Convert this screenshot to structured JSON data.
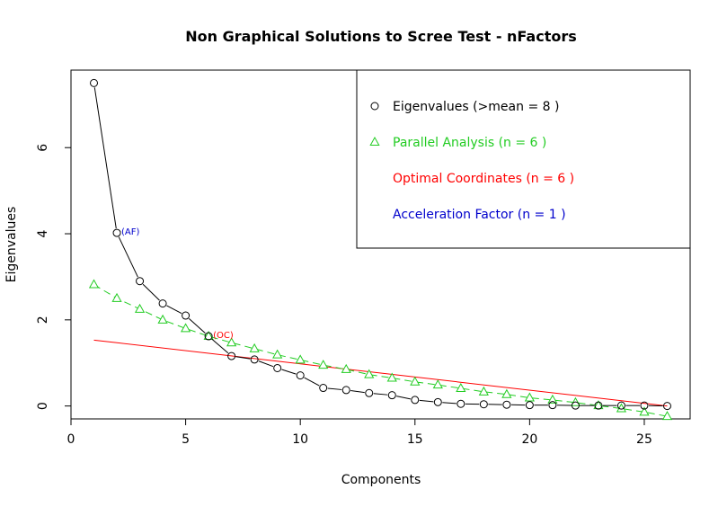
{
  "chart_data": {
    "type": "scatter",
    "title": "Non Graphical Solutions to Scree Test - nFactors",
    "xlabel": "Components",
    "ylabel": "Eigenvalues",
    "xlim": [
      0,
      27
    ],
    "ylim": [
      -0.3,
      7.8
    ],
    "x_ticks": [
      0,
      5,
      10,
      15,
      20,
      25
    ],
    "y_ticks": [
      0,
      2,
      4,
      6
    ],
    "grid": false,
    "legend_position": "top-right",
    "series": [
      {
        "name": "Eigenvalues (>mean  =  8 )",
        "marker": "circle",
        "line": "solid",
        "color": "#000000",
        "x": [
          1,
          2,
          3,
          4,
          5,
          6,
          7,
          8,
          9,
          10,
          11,
          12,
          13,
          14,
          15,
          16,
          17,
          18,
          19,
          20,
          21,
          22,
          23,
          24,
          25,
          26
        ],
        "values": [
          7.5,
          4.02,
          2.9,
          2.38,
          2.1,
          1.62,
          1.16,
          1.08,
          0.88,
          0.71,
          0.42,
          0.37,
          0.3,
          0.25,
          0.14,
          0.09,
          0.05,
          0.04,
          0.03,
          0.02,
          0.02,
          0.01,
          0.01,
          0.01,
          0.01,
          0.0
        ]
      },
      {
        "name": "Parallel Analysis (n =  6 )",
        "marker": "triangle",
        "line": "dashed",
        "color": "#22cc22",
        "x": [
          1,
          2,
          3,
          4,
          5,
          6,
          7,
          8,
          9,
          10,
          11,
          12,
          13,
          14,
          15,
          16,
          17,
          18,
          19,
          20,
          21,
          22,
          23,
          24,
          25,
          26
        ],
        "values": [
          2.82,
          2.5,
          2.25,
          2.0,
          1.8,
          1.62,
          1.47,
          1.33,
          1.19,
          1.07,
          0.95,
          0.85,
          0.73,
          0.65,
          0.56,
          0.49,
          0.41,
          0.33,
          0.27,
          0.19,
          0.14,
          0.08,
          0.01,
          -0.06,
          -0.14,
          -0.24
        ]
      },
      {
        "name": "Optimal Coordinates (n =  6 )",
        "marker": "none",
        "line": "solid",
        "color": "#ff0000",
        "x": [
          1,
          26
        ],
        "values": [
          1.53,
          0.0
        ]
      },
      {
        "name": "Acceleration Factor (n =  1 )",
        "marker": "none",
        "line": "none",
        "color": "#0000cc"
      }
    ],
    "annotations": [
      {
        "text": "(AF)",
        "x": 2,
        "y": 4.02,
        "color": "#0000cc"
      },
      {
        "text": "(OC)",
        "x": 6,
        "y": 1.62,
        "color": "#ff0000"
      }
    ]
  }
}
